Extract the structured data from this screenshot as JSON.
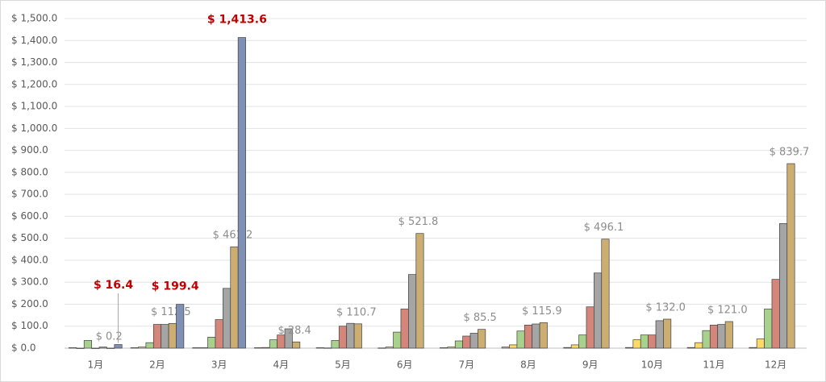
{
  "chart_data": {
    "type": "bar",
    "categories": [
      "1月",
      "2月",
      "3月",
      "4月",
      "5月",
      "6月",
      "7月",
      "8月",
      "9月",
      "10月",
      "11月",
      "12月"
    ],
    "ylim": [
      0,
      1500
    ],
    "yticks": [
      {
        "value": 0,
        "label": "$ 0.0"
      },
      {
        "value": 100,
        "label": "$ 100.0"
      },
      {
        "value": 200,
        "label": "$ 200.0"
      },
      {
        "value": 300,
        "label": "$ 300.0"
      },
      {
        "value": 400,
        "label": "$ 400.0"
      },
      {
        "value": 500,
        "label": "$ 500.0"
      },
      {
        "value": 600,
        "label": "$ 600.0"
      },
      {
        "value": 700,
        "label": "$ 700.0"
      },
      {
        "value": 800,
        "label": "$ 800.0"
      },
      {
        "value": 900,
        "label": "$ 900.0"
      },
      {
        "value": 1000,
        "label": "$ 1,000.0"
      },
      {
        "value": 1100,
        "label": "$ 1,100.0"
      },
      {
        "value": 1200,
        "label": "$ 1,200.0"
      },
      {
        "value": 1300,
        "label": "$ 1,300.0"
      },
      {
        "value": 1400,
        "label": "$ 1,400.0"
      },
      {
        "value": 1500,
        "label": "$ 1,500.0"
      }
    ],
    "grid": true,
    "series": [
      {
        "color": "#f4b183",
        "values": [
          2,
          2,
          2,
          2,
          2,
          1,
          2,
          5,
          3,
          3,
          3,
          3
        ]
      },
      {
        "color": "#ffd966",
        "values": [
          0,
          5,
          2,
          3,
          1,
          5,
          5,
          15,
          15,
          38,
          25,
          42
        ]
      },
      {
        "color": "#a9d18e",
        "values": [
          35,
          25,
          50,
          38,
          35,
          73,
          33,
          78,
          60,
          60,
          80,
          178
        ]
      },
      {
        "color": "#d4867a",
        "values": [
          0,
          108,
          130,
          60,
          100,
          178,
          55,
          105,
          188,
          60,
          105,
          313
        ]
      },
      {
        "color": "#a5a5a5",
        "values": [
          5,
          108,
          272,
          88,
          113,
          335,
          68,
          110,
          342,
          125,
          108,
          567
        ]
      },
      {
        "color": "#cdae72",
        "values": [
          0.2,
          112.5,
          461.2,
          28.4,
          110.7,
          521.8,
          85.5,
          115.9,
          496.1,
          132.0,
          121.0,
          839.7
        ],
        "value_labels": [
          "$ 0.2",
          "$ 112.5",
          "$ 461.2",
          "$ 28.4",
          "$ 110.7",
          "$ 521.8",
          "$ 85.5",
          "$ 115.9",
          "$ 496.1",
          "$ 132.0",
          "$ 121.0",
          "$ 839.7"
        ],
        "label_color": "#8c8c8c",
        "label_bold": false
      },
      {
        "color": "#8090b4",
        "values": [
          16.4,
          199.4,
          1413.6,
          null,
          null,
          null,
          null,
          null,
          null,
          null,
          null,
          null
        ],
        "value_labels": [
          "$ 16.4",
          "$ 199.4",
          "$ 1,413.6",
          null,
          null,
          null,
          null,
          null,
          null,
          null,
          null,
          null
        ],
        "label_color": "#c00000",
        "label_bold": true
      }
    ]
  }
}
